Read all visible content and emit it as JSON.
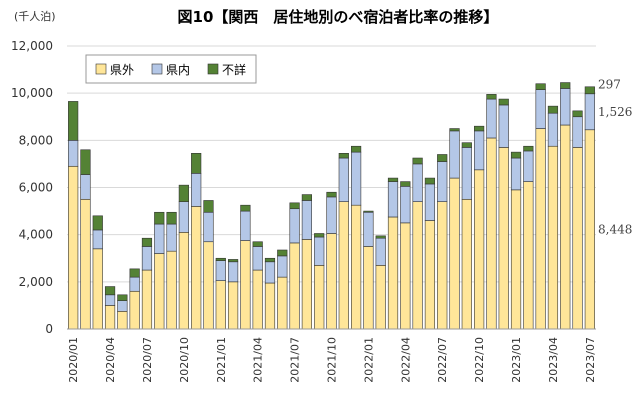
{
  "chart_data": {
    "type": "bar",
    "stacked": true,
    "title": "図10【関西　居住地別のべ宿泊者比率の推移】",
    "unit_label": "(千人泊)",
    "ylim": [
      0,
      12000
    ],
    "yticks": [
      "0",
      "2,000",
      "4,000",
      "6,000",
      "8,000",
      "10,000",
      "12,000"
    ],
    "ytick_values": [
      0,
      2000,
      4000,
      6000,
      8000,
      10000,
      12000
    ],
    "grid": true,
    "legend_position": "top-left",
    "categories": [
      "2020/01",
      "2020/02",
      "2020/03",
      "2020/04",
      "2020/05",
      "2020/06",
      "2020/07",
      "2020/08",
      "2020/09",
      "2020/10",
      "2020/11",
      "2020/12",
      "2021/01",
      "2021/02",
      "2021/03",
      "2021/04",
      "2021/05",
      "2021/06",
      "2021/07",
      "2021/08",
      "2021/09",
      "2021/10",
      "2021/11",
      "2021/12",
      "2022/01",
      "2022/02",
      "2022/03",
      "2022/04",
      "2022/05",
      "2022/06",
      "2022/07",
      "2022/08",
      "2022/09",
      "2022/10",
      "2022/11",
      "2022/12",
      "2023/01",
      "2023/02",
      "2023/03",
      "2023/04",
      "2023/05",
      "2023/06",
      "2023/07"
    ],
    "x_tick_labels": [
      "2020/01",
      "2020/04",
      "2020/07",
      "2020/10",
      "2021/01",
      "2021/04",
      "2021/07",
      "2021/10",
      "2022/01",
      "2022/04",
      "2022/07",
      "2022/10",
      "2023/01",
      "2023/04",
      "2023/07"
    ],
    "series": [
      {
        "name": "県外",
        "color": "#ffe699",
        "values": [
          6900,
          5500,
          3400,
          1000,
          750,
          1600,
          2500,
          3200,
          3300,
          4100,
          5200,
          3700,
          2050,
          2000,
          3750,
          2500,
          1950,
          2200,
          3650,
          3800,
          2700,
          4050,
          5400,
          5250,
          3500,
          2700,
          4750,
          4500,
          5400,
          4600,
          5400,
          6400,
          5500,
          6750,
          8100,
          7700,
          5900,
          6250,
          8500,
          7750,
          8650,
          7700,
          8448
        ]
      },
      {
        "name": "県内",
        "color": "#b4c7e7",
        "values": [
          1100,
          1050,
          800,
          450,
          450,
          600,
          1000,
          1250,
          1150,
          1300,
          1400,
          1250,
          850,
          850,
          1250,
          1000,
          900,
          900,
          1450,
          1650,
          1200,
          1550,
          1850,
          2250,
          1450,
          1150,
          1500,
          1550,
          1600,
          1550,
          1700,
          2000,
          2200,
          1650,
          1650,
          1800,
          1350,
          1300,
          1650,
          1400,
          1550,
          1300,
          1526
        ]
      },
      {
        "name": "不詳",
        "color": "#548235",
        "values": [
          1650,
          1050,
          600,
          350,
          250,
          350,
          350,
          500,
          500,
          700,
          850,
          500,
          100,
          100,
          250,
          200,
          150,
          250,
          250,
          250,
          150,
          200,
          200,
          250,
          50,
          100,
          150,
          200,
          250,
          250,
          300,
          100,
          200,
          200,
          200,
          250,
          250,
          200,
          250,
          300,
          250,
          250,
          297
        ]
      }
    ],
    "annotations": [
      {
        "text": "297",
        "series": "不詳",
        "index": 42
      },
      {
        "text": "1,526",
        "series": "県内",
        "index": 42
      },
      {
        "text": "8,448",
        "series": "県外",
        "index": 42
      }
    ]
  }
}
